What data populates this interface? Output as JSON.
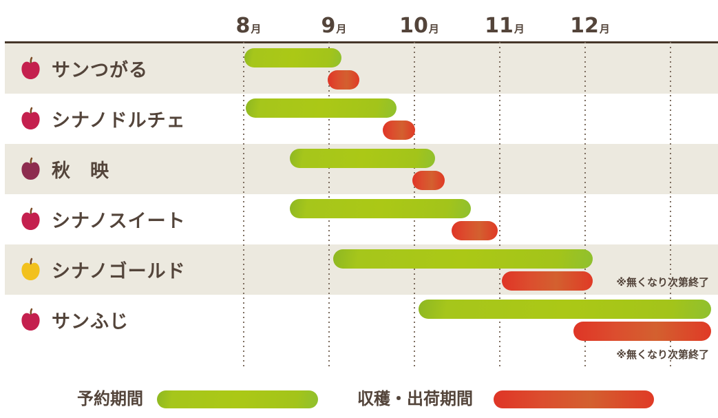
{
  "chart_data": {
    "type": "gantt",
    "x_axis": {
      "unit": "month",
      "tick_labels": [
        "8月",
        "9月",
        "10月",
        "11月",
        "12月"
      ],
      "range_months": [
        8,
        13
      ],
      "gridlines": "dotted-vertical"
    },
    "x_ticks": [
      {
        "num": "8",
        "unit": "月",
        "month": 8
      },
      {
        "num": "9",
        "unit": "月",
        "month": 9
      },
      {
        "num": "10",
        "unit": "月",
        "month": 10
      },
      {
        "num": "11",
        "unit": "月",
        "month": 11
      },
      {
        "num": "12",
        "unit": "月",
        "month": 12
      }
    ],
    "grid_ticks": [
      8,
      9,
      10,
      11,
      12,
      13
    ],
    "legend": [
      {
        "key": "reserve",
        "label": "予約期間",
        "color": "#a5c51a"
      },
      {
        "key": "ship",
        "label": "収穫・出荷期間",
        "color": "#dc4a2d"
      }
    ],
    "rows": [
      {
        "label": "サンつがる",
        "apple_color": "#c4204e",
        "reserve": {
          "start": 8.02,
          "end": 9.15
        },
        "ship": {
          "start": 8.99,
          "end": 9.36
        },
        "note": null
      },
      {
        "label": "シナノドルチェ",
        "apple_color": "#c4204e",
        "reserve": {
          "start": 8.03,
          "end": 9.8
        },
        "ship": {
          "start": 9.64,
          "end": 10.02
        },
        "note": null
      },
      {
        "label": "秋　映",
        "apple_color": "#8d2c4f",
        "reserve": {
          "start": 8.55,
          "end": 10.25
        },
        "ship": {
          "start": 9.98,
          "end": 10.36
        },
        "note": null
      },
      {
        "label": "シナノスイート",
        "apple_color": "#c4204e",
        "reserve": {
          "start": 8.55,
          "end": 10.67
        },
        "ship": {
          "start": 10.44,
          "end": 10.98
        },
        "note": null
      },
      {
        "label": "シナノゴールド",
        "apple_color": "#f2c11e",
        "reserve": {
          "start": 9.06,
          "end": 12.1
        },
        "ship": {
          "start": 11.03,
          "end": 12.1
        },
        "note": "※無くなり次第終了"
      },
      {
        "label": "サンふじ",
        "apple_color": "#c4204e",
        "reserve": {
          "start": 10.06,
          "end": 13.48
        },
        "ship": {
          "start": 11.87,
          "end": 13.48
        },
        "note": "※無くなり次第終了"
      }
    ]
  },
  "colors": {
    "background": "#ffffff",
    "row_stripe": "#ece9df",
    "text": "#53443a",
    "header_rule": "#463629",
    "grid_dot": "#7c6c5e",
    "reserve_bar": "#a5c51a",
    "ship_bar": "#dc4a2d",
    "apple_red": "#c4204e",
    "apple_dark_red": "#8d2c4f",
    "apple_gold": "#f2c11e",
    "apple_stem": "#7b4b26"
  }
}
